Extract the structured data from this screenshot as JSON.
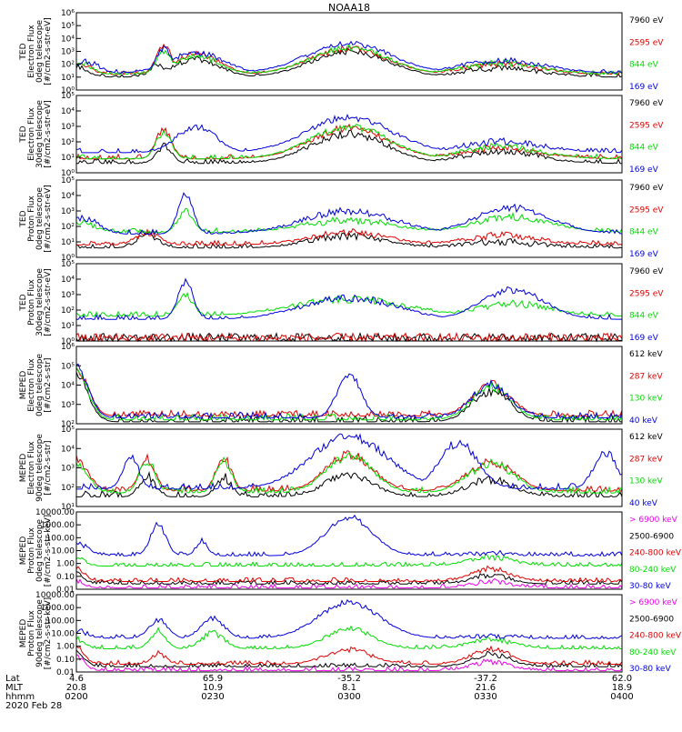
{
  "title": "NOAA18",
  "colors": {
    "black": "#000000",
    "red": "#e00000",
    "green": "#00dd00",
    "blue": "#0000dd",
    "magenta": "#ee00ee"
  },
  "footer": {
    "row_labels": [
      "Lat",
      "MLT",
      "hhmm"
    ],
    "date": "2020 Feb 28",
    "columns": [
      {
        "lat": "4.6",
        "mlt": "20.8",
        "hhmm": "0200"
      },
      {
        "lat": "65.9",
        "mlt": "10.9",
        "hhmm": "0230"
      },
      {
        "lat": "-35.2",
        "mlt": "8.1",
        "hhmm": "0300"
      },
      {
        "lat": "-37.2",
        "mlt": "21.6",
        "hhmm": "0330"
      },
      {
        "lat": "62.0",
        "mlt": "18.9",
        "hhmm": "0400"
      }
    ]
  },
  "chart_data": [
    {
      "type": "line",
      "panel": 1,
      "ylabel": [
        "TED",
        "Electron Flux",
        "0deg telescope",
        "[#/cm2-s-str-eV]"
      ],
      "ytick_labels": [
        "10⁰",
        "10¹",
        "10²",
        "10³",
        "10⁴",
        "10⁵",
        "10⁶"
      ],
      "ylim": [
        0,
        6
      ],
      "series": [
        {
          "name": "7960 eV",
          "color": "#000000",
          "base": 1.0,
          "bursts": [
            [
              0.0,
              0.03,
              1.8
            ],
            [
              0.15,
              0.02,
              2.0
            ],
            [
              0.22,
              0.06,
              2.4
            ],
            [
              0.5,
              0.1,
              3.0
            ],
            [
              0.78,
              0.1,
              1.7
            ]
          ]
        },
        {
          "name": "2595 eV",
          "color": "#e00000",
          "base": 1.2,
          "bursts": [
            [
              0.01,
              0.03,
              1.9
            ],
            [
              0.16,
              0.02,
              3.5
            ],
            [
              0.22,
              0.06,
              2.8
            ],
            [
              0.5,
              0.1,
              3.2
            ],
            [
              0.78,
              0.1,
              2.0
            ]
          ]
        },
        {
          "name": "844 eV",
          "color": "#00dd00",
          "base": 1.2,
          "bursts": [
            [
              0.01,
              0.03,
              2.0
            ],
            [
              0.16,
              0.02,
              3.0
            ],
            [
              0.22,
              0.06,
              2.6
            ],
            [
              0.5,
              0.1,
              3.3
            ],
            [
              0.78,
              0.1,
              2.1
            ]
          ]
        },
        {
          "name": "169 eV",
          "color": "#0000dd",
          "base": 1.3,
          "bursts": [
            [
              0.02,
              0.03,
              2.2
            ],
            [
              0.16,
              0.02,
              3.2
            ],
            [
              0.22,
              0.07,
              2.9
            ],
            [
              0.5,
              0.11,
              3.6
            ],
            [
              0.78,
              0.11,
              2.3
            ]
          ]
        }
      ]
    },
    {
      "type": "line",
      "panel": 2,
      "ylabel": [
        "TED",
        "Electron Flux",
        "30deg telescope",
        "[#/cm2-s-str-eV]"
      ],
      "ytick_labels": [
        "10⁰",
        "10¹",
        "10²",
        "10³",
        "10⁴",
        "10⁵"
      ],
      "ylim": [
        0,
        5
      ],
      "series": [
        {
          "name": "7960 eV",
          "color": "#000000",
          "base": 0.6,
          "bursts": [
            [
              0.16,
              0.02,
              1.7
            ],
            [
              0.5,
              0.1,
              2.5
            ],
            [
              0.78,
              0.1,
              1.4
            ]
          ]
        },
        {
          "name": "2595 eV",
          "color": "#e00000",
          "base": 0.9,
          "bursts": [
            [
              0.16,
              0.02,
              2.8
            ],
            [
              0.5,
              0.1,
              2.9
            ],
            [
              0.78,
              0.1,
              1.6
            ]
          ]
        },
        {
          "name": "844 eV",
          "color": "#00dd00",
          "base": 0.9,
          "bursts": [
            [
              0.16,
              0.02,
              2.6
            ],
            [
              0.5,
              0.1,
              3.0
            ],
            [
              0.78,
              0.1,
              1.7
            ]
          ]
        },
        {
          "name": "169 eV",
          "color": "#0000dd",
          "base": 1.3,
          "bursts": [
            [
              0.22,
              0.05,
              3.0
            ],
            [
              0.5,
              0.11,
              3.6
            ],
            [
              0.78,
              0.11,
              2.0
            ]
          ]
        }
      ]
    },
    {
      "type": "line",
      "panel": 3,
      "ylabel": [
        "TED",
        "Proton Flux",
        "0deg telescope",
        "[#/cm2-s-str-eV]"
      ],
      "ytick_labels": [
        "10⁰",
        "10¹",
        "10²",
        "10³",
        "10⁴",
        "10⁵"
      ],
      "ylim": [
        0,
        5
      ],
      "series": [
        {
          "name": "7960 eV",
          "color": "#000000",
          "base": 0.6,
          "bursts": [
            [
              0.13,
              0.03,
              1.4
            ],
            [
              0.5,
              0.1,
              1.4
            ],
            [
              0.78,
              0.1,
              1.0
            ]
          ]
        },
        {
          "name": "2595 eV",
          "color": "#e00000",
          "base": 0.8,
          "bursts": [
            [
              0.13,
              0.03,
              1.6
            ],
            [
              0.5,
              0.1,
              1.6
            ],
            [
              0.78,
              0.1,
              1.4
            ]
          ]
        },
        {
          "name": "844 eV",
          "color": "#00dd00",
          "base": 1.6,
          "bursts": [
            [
              0.01,
              0.04,
              2.2
            ],
            [
              0.2,
              0.02,
              3.0
            ],
            [
              0.5,
              0.12,
              2.4
            ],
            [
              0.8,
              0.1,
              2.6
            ]
          ]
        },
        {
          "name": "169 eV",
          "color": "#0000dd",
          "base": 1.5,
          "bursts": [
            [
              0.01,
              0.04,
              2.6
            ],
            [
              0.2,
              0.02,
              4.0
            ],
            [
              0.5,
              0.12,
              3.0
            ],
            [
              0.8,
              0.1,
              3.2
            ]
          ]
        }
      ]
    },
    {
      "type": "line",
      "panel": 4,
      "ylabel": [
        "TED",
        "Proton Flux",
        "30deg telescope",
        "[#/cm2-s-str-eV]"
      ],
      "ytick_labels": [
        "10⁰",
        "10¹",
        "10²",
        "10³",
        "10⁴",
        "10⁵"
      ],
      "ylim": [
        0,
        5
      ],
      "series": [
        {
          "name": "7960 eV",
          "color": "#000000",
          "base": 0.2,
          "bursts": []
        },
        {
          "name": "2595 eV",
          "color": "#e00000",
          "base": 0.2,
          "bursts": []
        },
        {
          "name": "844 eV",
          "color": "#00dd00",
          "base": 1.6,
          "bursts": [
            [
              0.2,
              0.02,
              3.0
            ],
            [
              0.5,
              0.15,
              2.7
            ],
            [
              0.8,
              0.1,
              2.4
            ]
          ]
        },
        {
          "name": "169 eV",
          "color": "#0000dd",
          "base": 1.4,
          "bursts": [
            [
              0.2,
              0.02,
              3.8
            ],
            [
              0.5,
              0.12,
              2.8
            ],
            [
              0.8,
              0.08,
              3.3
            ]
          ]
        }
      ]
    },
    {
      "type": "line",
      "panel": 5,
      "ylabel": [
        "MEPED",
        "Electron Flux",
        "0deg telescope",
        "[#/cm2-s-str]"
      ],
      "ytick_labels": [
        "10²",
        "10³",
        "10⁴",
        "10⁵",
        "10⁶"
      ],
      "ylim": [
        2,
        6
      ],
      "series": [
        {
          "name": "612 keV",
          "color": "#000000",
          "base": 2.1,
          "bursts": [
            [
              0.0,
              0.03,
              4.6
            ],
            [
              0.76,
              0.05,
              3.7
            ]
          ]
        },
        {
          "name": "287 keV",
          "color": "#e00000",
          "base": 2.4,
          "bursts": [
            [
              0.0,
              0.03,
              4.8
            ],
            [
              0.76,
              0.05,
              4.0
            ]
          ]
        },
        {
          "name": "130 keV",
          "color": "#00dd00",
          "base": 2.2,
          "bursts": [
            [
              0.0,
              0.03,
              4.7
            ],
            [
              0.76,
              0.05,
              3.9
            ]
          ]
        },
        {
          "name": "40 keV",
          "color": "#0000dd",
          "base": 2.3,
          "bursts": [
            [
              0.0,
              0.03,
              4.9
            ],
            [
              0.5,
              0.03,
              4.6
            ],
            [
              0.76,
              0.05,
              4.0
            ]
          ]
        }
      ]
    },
    {
      "type": "line",
      "panel": 6,
      "ylabel": [
        "MEPED",
        "Electron Flux",
        "90deg telescope",
        "[#/cm2-s-str]"
      ],
      "ytick_labels": [
        "10¹",
        "10²",
        "10³",
        "10⁴",
        "10⁵"
      ],
      "ylim": [
        1,
        5
      ],
      "series": [
        {
          "name": "612 keV",
          "color": "#000000",
          "base": 1.5,
          "bursts": [
            [
              0.13,
              0.02,
              2.6
            ],
            [
              0.27,
              0.02,
              2.5
            ],
            [
              0.5,
              0.06,
              2.7
            ],
            [
              0.76,
              0.06,
              2.4
            ]
          ]
        },
        {
          "name": "287 keV",
          "color": "#e00000",
          "base": 1.8,
          "bursts": [
            [
              0.0,
              0.03,
              3.4
            ],
            [
              0.13,
              0.02,
              3.5
            ],
            [
              0.27,
              0.02,
              3.5
            ],
            [
              0.5,
              0.06,
              3.7
            ],
            [
              0.76,
              0.06,
              3.3
            ]
          ]
        },
        {
          "name": "130 keV",
          "color": "#00dd00",
          "base": 1.7,
          "bursts": [
            [
              0.0,
              0.03,
              3.3
            ],
            [
              0.13,
              0.02,
              3.4
            ],
            [
              0.27,
              0.02,
              3.4
            ],
            [
              0.5,
              0.06,
              3.6
            ],
            [
              0.76,
              0.06,
              3.2
            ]
          ]
        },
        {
          "name": "40 keV",
          "color": "#0000dd",
          "base": 1.9,
          "bursts": [
            [
              0.1,
              0.02,
              3.6
            ],
            [
              0.5,
              0.1,
              4.6
            ],
            [
              0.7,
              0.05,
              4.3
            ],
            [
              0.97,
              0.03,
              3.8
            ]
          ]
        }
      ]
    },
    {
      "type": "line",
      "panel": 7,
      "ylabel": [
        "MEPED",
        "Proton Flux",
        "0deg telescope",
        "[#/cm2-s-str-keV]"
      ],
      "ytick_labels": [
        "0.01",
        "0.10",
        "1.00",
        "10.00",
        "100.00",
        "1000.00",
        "10000.00"
      ],
      "ylim": [
        -2,
        4
      ],
      "series": [
        {
          "name": "> 6900 keV",
          "color": "#ee00ee",
          "base": -1.9,
          "bursts": [
            [
              0.0,
              0.02,
              -1.3
            ],
            [
              0.76,
              0.05,
              -1.4
            ]
          ]
        },
        {
          "name": "2500-6900",
          "color": "#000000",
          "base": -1.6,
          "bursts": [
            [
              0.0,
              0.02,
              -0.8
            ],
            [
              0.76,
              0.05,
              -0.9
            ]
          ]
        },
        {
          "name": "240-800 keV",
          "color": "#e00000",
          "base": -1.4,
          "bursts": [
            [
              0.0,
              0.02,
              -0.4
            ],
            [
              0.76,
              0.05,
              -0.4
            ]
          ]
        },
        {
          "name": "80-240 keV",
          "color": "#00dd00",
          "base": -0.2,
          "bursts": [
            [
              0.0,
              0.02,
              0.6
            ],
            [
              0.76,
              0.06,
              0.5
            ]
          ]
        },
        {
          "name": "30-80 keV",
          "color": "#0000dd",
          "base": 0.6,
          "bursts": [
            [
              0.0,
              0.03,
              1.6
            ],
            [
              0.15,
              0.02,
              3.0
            ],
            [
              0.23,
              0.015,
              1.8
            ],
            [
              0.5,
              0.06,
              3.6
            ],
            [
              0.76,
              0.06,
              0.8
            ]
          ]
        }
      ]
    },
    {
      "type": "line",
      "panel": 8,
      "ylabel": [
        "MEPED",
        "Proton Flux",
        "90deg telescope",
        "[#/cm2-s-str-keV]"
      ],
      "ytick_labels": [
        "0.01",
        "0.10",
        "1.00",
        "10.00",
        "100.00",
        "1000.00",
        "10000.00"
      ],
      "ylim": [
        -2,
        4
      ],
      "series": [
        {
          "name": "> 6900 keV",
          "color": "#ee00ee",
          "base": -1.9,
          "bursts": [
            [
              0.0,
              0.02,
              -0.8
            ],
            [
              0.76,
              0.05,
              -1.2
            ]
          ]
        },
        {
          "name": "2500-6900",
          "color": "#000000",
          "base": -1.6,
          "bursts": [
            [
              0.0,
              0.02,
              -0.4
            ],
            [
              0.76,
              0.05,
              -0.6
            ]
          ]
        },
        {
          "name": "240-800 keV",
          "color": "#e00000",
          "base": -1.4,
          "bursts": [
            [
              0.0,
              0.02,
              0.0
            ],
            [
              0.15,
              0.02,
              -0.6
            ],
            [
              0.5,
              0.06,
              -0.3
            ],
            [
              0.76,
              0.05,
              -0.2
            ]
          ]
        },
        {
          "name": "80-240 keV",
          "color": "#00dd00",
          "base": -0.2,
          "bursts": [
            [
              0.0,
              0.02,
              0.6
            ],
            [
              0.15,
              0.02,
              1.2
            ],
            [
              0.25,
              0.03,
              1.0
            ],
            [
              0.5,
              0.06,
              1.4
            ],
            [
              0.76,
              0.06,
              0.5
            ]
          ]
        },
        {
          "name": "30-80 keV",
          "color": "#0000dd",
          "base": 0.6,
          "bursts": [
            [
              0.0,
              0.03,
              1.2
            ],
            [
              0.15,
              0.025,
              2.0
            ],
            [
              0.25,
              0.03,
              2.2
            ],
            [
              0.5,
              0.08,
              3.4
            ],
            [
              0.76,
              0.06,
              0.8
            ]
          ]
        }
      ]
    }
  ]
}
